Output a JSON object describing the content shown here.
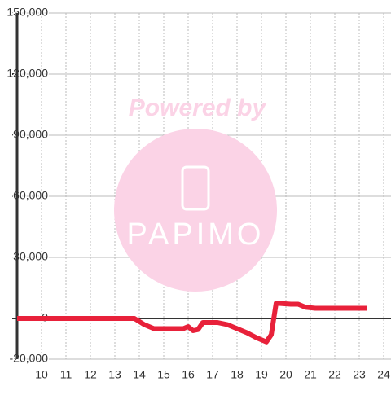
{
  "chart_data": {
    "type": "line",
    "x": [
      9,
      13.8,
      14,
      14.2,
      14.6,
      15.8,
      16,
      16.2,
      16.4,
      16.6,
      17.2,
      17.6,
      18,
      18.4,
      18.8,
      19.2,
      19.4,
      19.6,
      20.2,
      20.5,
      20.8,
      21.2,
      23.3
    ],
    "series": [
      {
        "color": "#e8213a",
        "values": [
          0,
          0,
          -1500,
          -3000,
          -5000,
          -5000,
          -4000,
          -6000,
          -5500,
          -2000,
          -2000,
          -3000,
          -5000,
          -7000,
          -9500,
          -11500,
          -8000,
          7500,
          7000,
          7000,
          5500,
          5000,
          5000
        ]
      }
    ],
    "xlim": [
      9,
      24.3
    ],
    "ylim": [
      -20000,
      150000
    ],
    "xticks": [
      10,
      11,
      12,
      13,
      14,
      15,
      16,
      17,
      18,
      19,
      20,
      21,
      22,
      23,
      24
    ],
    "yticks": [
      {
        "value": -20000,
        "label": "-20,000"
      },
      0,
      {
        "value": 30000,
        "label": "30,000"
      },
      {
        "value": 60000,
        "label": "60,000"
      },
      {
        "value": 90000,
        "label": "90,000"
      },
      {
        "value": 120000,
        "label": "120,000"
      },
      {
        "value": 150000,
        "label": "150,000"
      }
    ],
    "grid": true,
    "watermark": {
      "text": "Powered by",
      "logo": "PAPIMO"
    }
  }
}
